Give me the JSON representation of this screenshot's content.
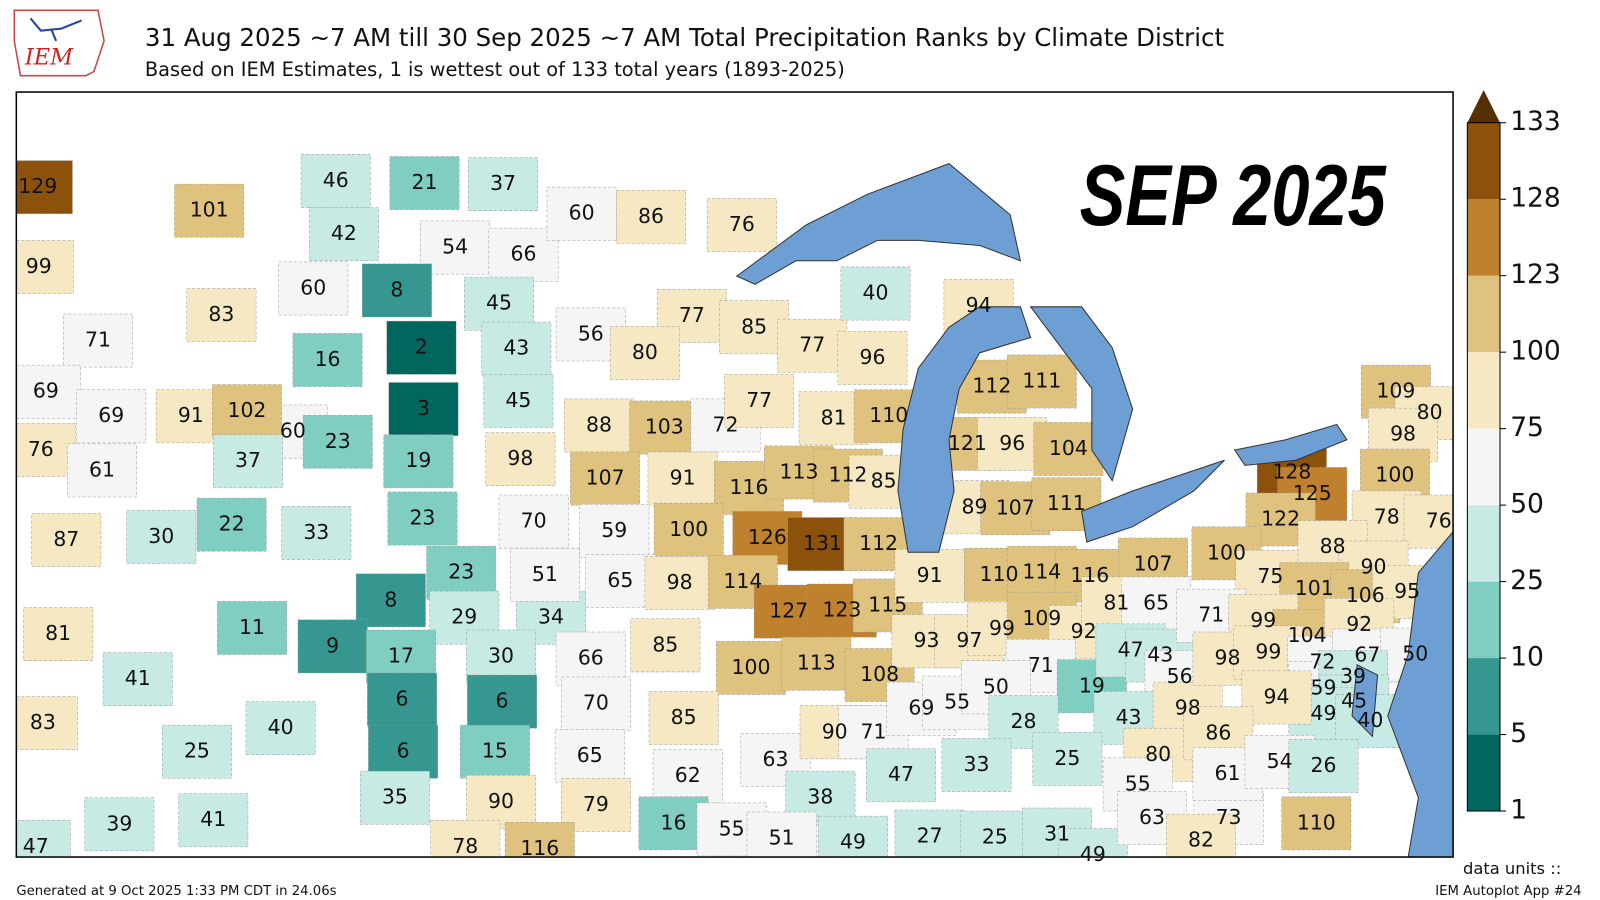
{
  "logo": "IEM",
  "title": "31 Aug 2025 ~7 AM till 30 Sep 2025 ~7 AM Total Precipitation Ranks by Climate District",
  "subtitle": "Based on IEM Estimates, 1 is wettest out of 133 total years (1893-2025)",
  "overlay": "SEP 2025",
  "colorbar": {
    "ticks": [
      1,
      5,
      10,
      25,
      50,
      75,
      100,
      123,
      128,
      133
    ],
    "colors": [
      "#01665e",
      "#35978f",
      "#80cdc1",
      "#c7eae5",
      "#f5f5f5",
      "#f6e8c3",
      "#dfc27d",
      "#bf812d",
      "#8c510a"
    ],
    "extend_color": "#543005"
  },
  "ranks": [
    129,
    101,
    99,
    83,
    71,
    46,
    21,
    37,
    42,
    54,
    66,
    60,
    8,
    45,
    16,
    2,
    43,
    3,
    45,
    60,
    23,
    19,
    98,
    69,
    69,
    91,
    102,
    76,
    61,
    37,
    87,
    30,
    22,
    33,
    23,
    23,
    8,
    29,
    34,
    70,
    51,
    81,
    41,
    11,
    9,
    83,
    25,
    40,
    17,
    30,
    6,
    6,
    6,
    15,
    66,
    70,
    65,
    35,
    90,
    79,
    47,
    39,
    41,
    78,
    116,
    60,
    86,
    76,
    56,
    77,
    80,
    85,
    77,
    96,
    40,
    94,
    88,
    103,
    72,
    77,
    81,
    110,
    107,
    91,
    116,
    113,
    112,
    85,
    59,
    100,
    126,
    131,
    112,
    65,
    98,
    114,
    127,
    123,
    115,
    85,
    100,
    113,
    108,
    85,
    62,
    63,
    90,
    71,
    38,
    16,
    55,
    51,
    49,
    112,
    111,
    121,
    96,
    104,
    89,
    107,
    111,
    91,
    110,
    114,
    116,
    107,
    93,
    97,
    99,
    109,
    92,
    81,
    65,
    71,
    69,
    55,
    50,
    19,
    47,
    43,
    56,
    43,
    98,
    28,
    33,
    25,
    47,
    80,
    55,
    27,
    25,
    31,
    49,
    63,
    73,
    82,
    110,
    109,
    80,
    98,
    100,
    128,
    125,
    122,
    78,
    76,
    100,
    75,
    88,
    90,
    101,
    106,
    95,
    71,
    99,
    104,
    92,
    98,
    99,
    72,
    67,
    50,
    59,
    39,
    45,
    49,
    40,
    94,
    86,
    61,
    54,
    26
  ],
  "footer": {
    "generated": "Generated at 9 Oct 2025 1:33 PM CDT in 24.06s",
    "units": "data units ::",
    "app": "IEM Autoplot App #24"
  }
}
